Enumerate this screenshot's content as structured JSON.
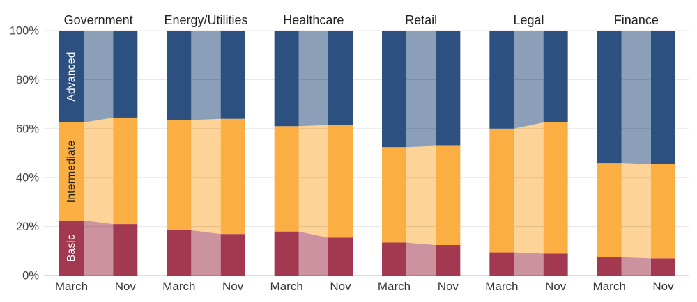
{
  "chart_data": {
    "type": "bar",
    "subtype": "stacked-percent-with-slope-bands",
    "title": "",
    "categories": [
      "Government",
      "Energy/Utilities",
      "Healthcare",
      "Retail",
      "Legal",
      "Finance"
    ],
    "periods": [
      "March",
      "Nov"
    ],
    "series": [
      {
        "name": "Basic",
        "color": "#A33851",
        "label_color": "#ffffff"
      },
      {
        "name": "Intermediate",
        "color": "#FBAE42",
        "label_color": "#1f1f1f"
      },
      {
        "name": "Advanced",
        "color": "#2C5080",
        "label_color": "#ffffff"
      }
    ],
    "data": [
      {
        "category": "Government",
        "March": {
          "Basic": 22.5,
          "Intermediate": 40.0,
          "Advanced": 37.5
        },
        "Nov": {
          "Basic": 21.0,
          "Intermediate": 43.5,
          "Advanced": 35.5
        }
      },
      {
        "category": "Energy/Utilities",
        "March": {
          "Basic": 18.5,
          "Intermediate": 45.0,
          "Advanced": 36.5
        },
        "Nov": {
          "Basic": 17.0,
          "Intermediate": 47.0,
          "Advanced": 36.0
        }
      },
      {
        "category": "Healthcare",
        "March": {
          "Basic": 18.0,
          "Intermediate": 43.0,
          "Advanced": 39.0
        },
        "Nov": {
          "Basic": 15.5,
          "Intermediate": 46.0,
          "Advanced": 38.5
        }
      },
      {
        "category": "Retail",
        "March": {
          "Basic": 13.5,
          "Intermediate": 39.0,
          "Advanced": 47.5
        },
        "Nov": {
          "Basic": 12.5,
          "Intermediate": 40.5,
          "Advanced": 47.0
        }
      },
      {
        "category": "Legal",
        "March": {
          "Basic": 9.5,
          "Intermediate": 50.5,
          "Advanced": 40.0
        },
        "Nov": {
          "Basic": 9.0,
          "Intermediate": 53.5,
          "Advanced": 37.5
        }
      },
      {
        "category": "Finance",
        "March": {
          "Basic": 7.5,
          "Intermediate": 38.5,
          "Advanced": 54.0
        },
        "Nov": {
          "Basic": 7.0,
          "Intermediate": 38.5,
          "Advanced": 54.5
        }
      }
    ],
    "segment_labels_on_first_bar": [
      "Basic",
      "Intermediate",
      "Advanced"
    ],
    "y_axis": {
      "range": [
        0,
        100
      ],
      "ticks": [
        0,
        20,
        40,
        60,
        80,
        100
      ],
      "tick_labels": [
        "0%",
        "20%",
        "40%",
        "60%",
        "80%",
        "100%"
      ],
      "grid": true
    },
    "legend_position": "in-bar-vertical-labels",
    "colors": {
      "background": "#ffffff",
      "grid_line": "#e4e4e4",
      "baseline": "#bdbdbd",
      "axis_text": "#444444",
      "title_text": "#222222"
    }
  }
}
